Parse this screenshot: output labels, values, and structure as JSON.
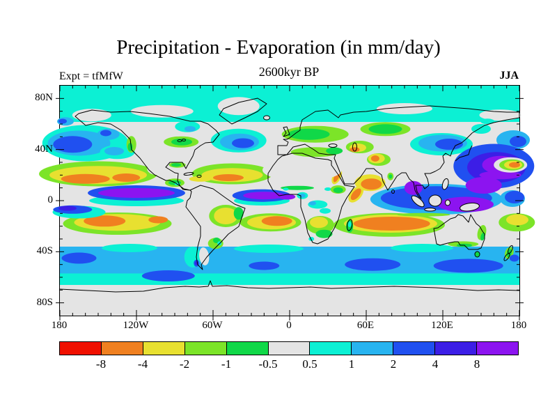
{
  "header": {
    "title": "Precipitation - Evaporation (in mm/day)",
    "subtitle": "2600kyr BP",
    "experiment_label": "Expt = tfMfW",
    "season_label": "JJA"
  },
  "axes": {
    "lon_ticks": [
      {
        "label": "180",
        "deg": -180
      },
      {
        "label": "120W",
        "deg": -120
      },
      {
        "label": "60W",
        "deg": -60
      },
      {
        "label": "0",
        "deg": 0
      },
      {
        "label": "60E",
        "deg": 60
      },
      {
        "label": "120E",
        "deg": 120
      },
      {
        "label": "180",
        "deg": 180
      }
    ],
    "lat_ticks": [
      {
        "label": "80N",
        "deg": 80
      },
      {
        "label": "40N",
        "deg": 40
      },
      {
        "label": "0",
        "deg": 0
      },
      {
        "label": "40S",
        "deg": -40
      },
      {
        "label": "80S",
        "deg": -80
      }
    ],
    "minor_tick_interval_deg": 10
  },
  "colorbar": {
    "boundary_labels": [
      "-8",
      "-4",
      "-2",
      "-1",
      "-0.5",
      "0.5",
      "1",
      "2",
      "4",
      "8"
    ],
    "segment_colors": [
      {
        "name": "red",
        "hex": "#F01000"
      },
      {
        "name": "orange",
        "hex": "#F08020"
      },
      {
        "name": "yellow",
        "hex": "#E8E030"
      },
      {
        "name": "chartreuse",
        "hex": "#7CE428"
      },
      {
        "name": "green",
        "hex": "#10D848"
      },
      {
        "name": "gray",
        "hex": "#E4E4E4"
      },
      {
        "name": "cyan",
        "hex": "#0CF0D4"
      },
      {
        "name": "sky-blue",
        "hex": "#28B4F0"
      },
      {
        "name": "blue",
        "hex": "#2050F0"
      },
      {
        "name": "indigo",
        "hex": "#3C1EE6"
      },
      {
        "name": "purple",
        "hex": "#8C14F0"
      }
    ]
  },
  "chart_data": {
    "type": "heatmap",
    "title": "Precipitation - Evaporation (in mm/day)",
    "subtitle": "2600kyr BP",
    "experiment": "tfMfW",
    "season": "JJA",
    "units": "mm/day",
    "projection": "equirectangular world map, lon 180W to 180E, lat 90N to 90S",
    "x_tick_labels": [
      "180",
      "120W",
      "60W",
      "0",
      "60E",
      "120E",
      "180"
    ],
    "y_tick_labels": [
      "80N",
      "40N",
      "0",
      "40S",
      "80S"
    ],
    "contour_levels": [
      -8,
      -4,
      -2,
      -1,
      -0.5,
      0.5,
      1,
      2,
      4,
      8
    ],
    "palette": [
      "#F01000",
      "#F08020",
      "#E8E030",
      "#7CE428",
      "#10D848",
      "#E4E4E4",
      "#0CF0D4",
      "#28B4F0",
      "#2050F0",
      "#3C1EE6",
      "#8C14F0"
    ],
    "legend_position": "bottom horizontal colorbar",
    "pattern_summary": [
      "Purple (>8) bands along the ITCZ in the eastern Pacific and Atlantic near 5-10N",
      "Large purple/indigo (>4) region over the western tropical Pacific, SE Asia and NW Pacific east of Japan",
      "Orange (-4 to -2) subtropical evaporation bands over the N Pacific, N Atlantic, S Pacific, S Atlantic and S Indian Ocean",
      "Orange cell over the Arabian Sea and an orange/yellow bullseye near the date line at ~28N",
      "Neutral gray (-0.5 to 0.5) over most continents: N America, Sahara, Arabia, central Asia, Patagonia, interior Australia, Antarctica",
      "Sky-blue (2 to 4) Southern Ocean band 38-57S with darker blue (4-8) cores",
      "Cyan (0.5 to 1) across the Arctic and in a circum-Antarctic strip near 60S",
      "Blue (4-8) storm-track blobs in the N Pacific and N Atlantic near 45N",
      "Green patches (-1 to -0.5) over Europe, west Siberia, the Great Lakes and southern Africa"
    ]
  }
}
